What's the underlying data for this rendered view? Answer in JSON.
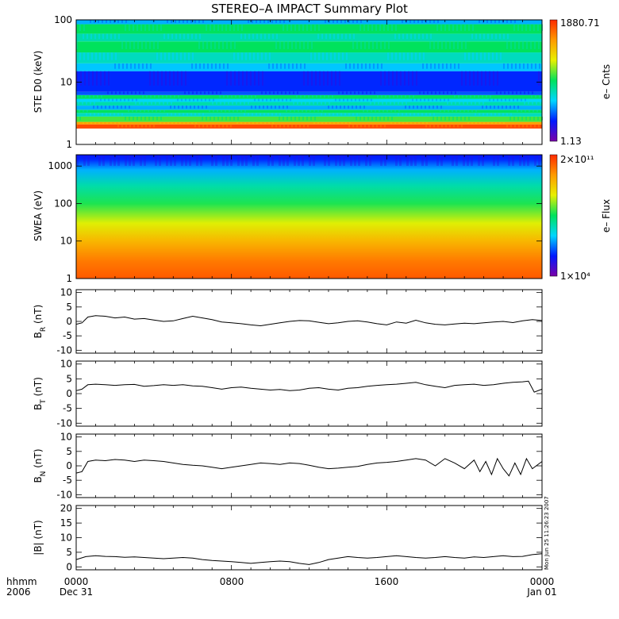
{
  "title": "STEREO–A IMPACT Summary Plot",
  "stamp": "Mon Jun 25 11:26:23 2007",
  "bottom": {
    "hhmm": "hhmm",
    "year": "2006",
    "ticks": [
      "0000",
      "0800",
      "1600",
      "0000"
    ],
    "dates": [
      "Dec 31",
      "Jan 01"
    ]
  },
  "colors": {
    "spectrum": [
      "#7a00a8",
      "#0018ff",
      "#00d6ff",
      "#00e25c",
      "#e8f000",
      "#ff9a00",
      "#ff2a00"
    ]
  },
  "chart_data": [
    {
      "type": "heatmap",
      "ylabel": "STE D0 (keV)",
      "yscale": "log",
      "ylim": [
        1,
        100
      ],
      "yticks": [
        "1",
        "10",
        "100"
      ],
      "colorbar": {
        "min_label": "1.13",
        "max_label": "1880.71",
        "label": "e– Cnts",
        "vmin": 1.13,
        "vmax": 1880.71
      },
      "bands": [
        {
          "e_low": 1.8,
          "e_high": 2.1,
          "level": 0.95
        },
        {
          "e_low": 2.1,
          "e_high": 2.3,
          "level": 0.82
        },
        {
          "e_low": 2.3,
          "e_high": 2.8,
          "level": 0.55
        },
        {
          "e_low": 2.8,
          "e_high": 3.2,
          "level": 0.4
        },
        {
          "e_low": 3.2,
          "e_high": 3.6,
          "level": 0.5
        },
        {
          "e_low": 3.6,
          "e_high": 4.2,
          "level": 0.3
        },
        {
          "e_low": 4.2,
          "e_high": 4.8,
          "level": 0.42
        },
        {
          "e_low": 4.8,
          "e_high": 5.4,
          "level": 0.34
        },
        {
          "e_low": 5.4,
          "e_high": 6.2,
          "level": 0.5
        },
        {
          "e_low": 6.2,
          "e_high": 7.0,
          "level": 0.22
        },
        {
          "e_low": 7.0,
          "e_high": 15.0,
          "level": 0.18
        },
        {
          "e_low": 15.0,
          "e_high": 20.0,
          "level": 0.32
        },
        {
          "e_low": 20.0,
          "e_high": 30.0,
          "level": 0.4
        },
        {
          "e_low": 30.0,
          "e_high": 45.0,
          "level": 0.5
        },
        {
          "e_low": 45.0,
          "e_high": 60.0,
          "level": 0.42
        },
        {
          "e_low": 60.0,
          "e_high": 85.0,
          "level": 0.5
        },
        {
          "e_low": 85.0,
          "e_high": 100.0,
          "level": 0.3
        }
      ]
    },
    {
      "type": "heatmap",
      "ylabel": "SWEA (eV)",
      "yscale": "log",
      "ylim": [
        1,
        2000
      ],
      "yticks": [
        "1",
        "10",
        "100",
        "1000"
      ],
      "colorbar": {
        "min_label": "1×10⁴",
        "max_label": "2×10¹¹",
        "label": "e– Flux",
        "vmin": 10000.0,
        "vmax": 200000000000.0
      },
      "gradient": [
        {
          "energy": 1,
          "level": 0.93
        },
        {
          "energy": 3,
          "level": 0.88
        },
        {
          "energy": 10,
          "level": 0.78
        },
        {
          "energy": 30,
          "level": 0.66
        },
        {
          "energy": 100,
          "level": 0.52
        },
        {
          "energy": 300,
          "level": 0.42
        },
        {
          "energy": 800,
          "level": 0.3
        },
        {
          "energy": 1500,
          "level": 0.18
        },
        {
          "energy": 2000,
          "level": 0.16
        }
      ]
    },
    {
      "type": "line",
      "ylabel": "B",
      "ylabel_sub": "R",
      "ylabel_unit": " (nT)",
      "ylim": [
        -11,
        11
      ],
      "yticks": [
        -10,
        -5,
        0,
        5,
        10
      ],
      "x": [
        0,
        0.3,
        0.6,
        1,
        1.5,
        2,
        2.5,
        3,
        3.5,
        4,
        4.5,
        5,
        5.5,
        6,
        6.5,
        7,
        7.5,
        8,
        8.5,
        9,
        9.5,
        10,
        10.5,
        11,
        11.5,
        12,
        12.5,
        13,
        13.5,
        14,
        14.5,
        15,
        15.5,
        16,
        16.5,
        17,
        17.5,
        18,
        18.5,
        19,
        19.5,
        20,
        20.5,
        21,
        21.5,
        22,
        22.5,
        23,
        23.5,
        24
      ],
      "y": [
        -1.0,
        -0.5,
        1.5,
        2.0,
        1.8,
        1.2,
        1.5,
        0.8,
        1.0,
        0.5,
        0.0,
        0.2,
        1.0,
        1.8,
        1.2,
        0.6,
        -0.2,
        -0.5,
        -0.8,
        -1.2,
        -1.5,
        -1.0,
        -0.5,
        0.0,
        0.3,
        0.2,
        -0.3,
        -0.8,
        -0.5,
        0.0,
        0.2,
        -0.2,
        -0.8,
        -1.2,
        -0.2,
        -0.6,
        0.4,
        -0.5,
        -1.0,
        -1.2,
        -0.9,
        -0.6,
        -0.8,
        -0.5,
        -0.2,
        0.0,
        -0.4,
        0.2,
        0.6,
        0.3
      ]
    },
    {
      "type": "line",
      "ylabel": "B",
      "ylabel_sub": "T",
      "ylabel_unit": " (nT)",
      "ylim": [
        -11,
        11
      ],
      "yticks": [
        -10,
        -5,
        0,
        5,
        10
      ],
      "x": [
        0,
        0.3,
        0.6,
        1,
        1.5,
        2,
        2.5,
        3,
        3.5,
        4,
        4.5,
        5,
        5.5,
        6,
        6.5,
        7,
        7.5,
        8,
        8.5,
        9,
        9.5,
        10,
        10.5,
        11,
        11.5,
        12,
        12.5,
        13,
        13.5,
        14,
        14.5,
        15,
        15.5,
        16,
        16.5,
        17,
        17.5,
        18,
        18.5,
        19,
        19.5,
        20,
        20.5,
        21,
        21.5,
        22,
        22.5,
        23,
        23.3,
        23.6,
        24
      ],
      "y": [
        1.0,
        1.5,
        3.0,
        3.2,
        3.0,
        2.8,
        3.0,
        3.1,
        2.5,
        2.7,
        3.0,
        2.8,
        3.0,
        2.6,
        2.5,
        2.0,
        1.5,
        2.0,
        2.2,
        1.8,
        1.5,
        1.2,
        1.4,
        1.0,
        1.2,
        1.8,
        2.0,
        1.5,
        1.2,
        1.8,
        2.0,
        2.5,
        2.8,
        3.0,
        3.2,
        3.5,
        3.8,
        3.0,
        2.5,
        2.0,
        2.8,
        3.0,
        3.2,
        2.8,
        3.0,
        3.5,
        3.8,
        4.0,
        4.2,
        0.5,
        1.5
      ]
    },
    {
      "type": "line",
      "ylabel": "B",
      "ylabel_sub": "N",
      "ylabel_unit": " (nT)",
      "ylim": [
        -11,
        11
      ],
      "yticks": [
        -10,
        -5,
        0,
        5,
        10
      ],
      "x": [
        0,
        0.3,
        0.6,
        1,
        1.5,
        2,
        2.5,
        3,
        3.5,
        4,
        4.5,
        5,
        5.5,
        6,
        6.5,
        7,
        7.5,
        8,
        8.5,
        9,
        9.5,
        10,
        10.5,
        11,
        11.5,
        12,
        12.5,
        13,
        13.5,
        14,
        14.5,
        15,
        15.5,
        16,
        16.5,
        17,
        17.5,
        18,
        18.5,
        19,
        19.5,
        20,
        20.5,
        20.8,
        21.1,
        21.4,
        21.7,
        22,
        22.3,
        22.6,
        22.9,
        23.2,
        23.5,
        24
      ],
      "y": [
        -2.5,
        -2.0,
        1.5,
        2.0,
        1.8,
        2.2,
        2.0,
        1.5,
        2.0,
        1.8,
        1.5,
        1.0,
        0.5,
        0.2,
        0.0,
        -0.5,
        -1.0,
        -0.5,
        0.0,
        0.5,
        1.0,
        0.8,
        0.5,
        1.0,
        0.8,
        0.2,
        -0.5,
        -1.0,
        -0.8,
        -0.5,
        -0.2,
        0.5,
        1.0,
        1.2,
        1.5,
        2.0,
        2.5,
        2.0,
        0.0,
        2.5,
        1.0,
        -1.0,
        2.0,
        -2.0,
        1.5,
        -3.0,
        2.5,
        -1.0,
        -3.5,
        1.0,
        -3.0,
        2.5,
        -1.0,
        1.5
      ]
    },
    {
      "type": "line",
      "ylabel": "|B| (nT)",
      "ylim": [
        -1,
        21
      ],
      "yticks": [
        0,
        5,
        10,
        15,
        20
      ],
      "x": [
        0,
        0.5,
        1,
        1.5,
        2,
        2.5,
        3,
        3.5,
        4,
        4.5,
        5,
        5.5,
        6,
        6.5,
        7,
        7.5,
        8,
        8.5,
        9,
        9.5,
        10,
        10.5,
        11,
        11.5,
        12,
        12.5,
        13,
        13.5,
        14,
        14.5,
        15,
        15.5,
        16,
        16.5,
        17,
        17.5,
        18,
        18.5,
        19,
        19.5,
        20,
        20.5,
        21,
        21.5,
        22,
        22.5,
        23,
        23.5,
        24
      ],
      "y": [
        2.5,
        3.5,
        3.8,
        3.6,
        3.5,
        3.3,
        3.4,
        3.2,
        3.0,
        2.8,
        3.0,
        3.2,
        3.0,
        2.5,
        2.2,
        2.0,
        1.8,
        1.5,
        1.2,
        1.5,
        1.8,
        2.0,
        1.8,
        1.2,
        0.8,
        1.5,
        2.5,
        3.0,
        3.5,
        3.2,
        3.0,
        3.2,
        3.5,
        3.8,
        3.5,
        3.2,
        3.0,
        3.2,
        3.5,
        3.2,
        3.0,
        3.4,
        3.2,
        3.5,
        3.8,
        3.5,
        3.6,
        4.2,
        4.5
      ]
    }
  ]
}
